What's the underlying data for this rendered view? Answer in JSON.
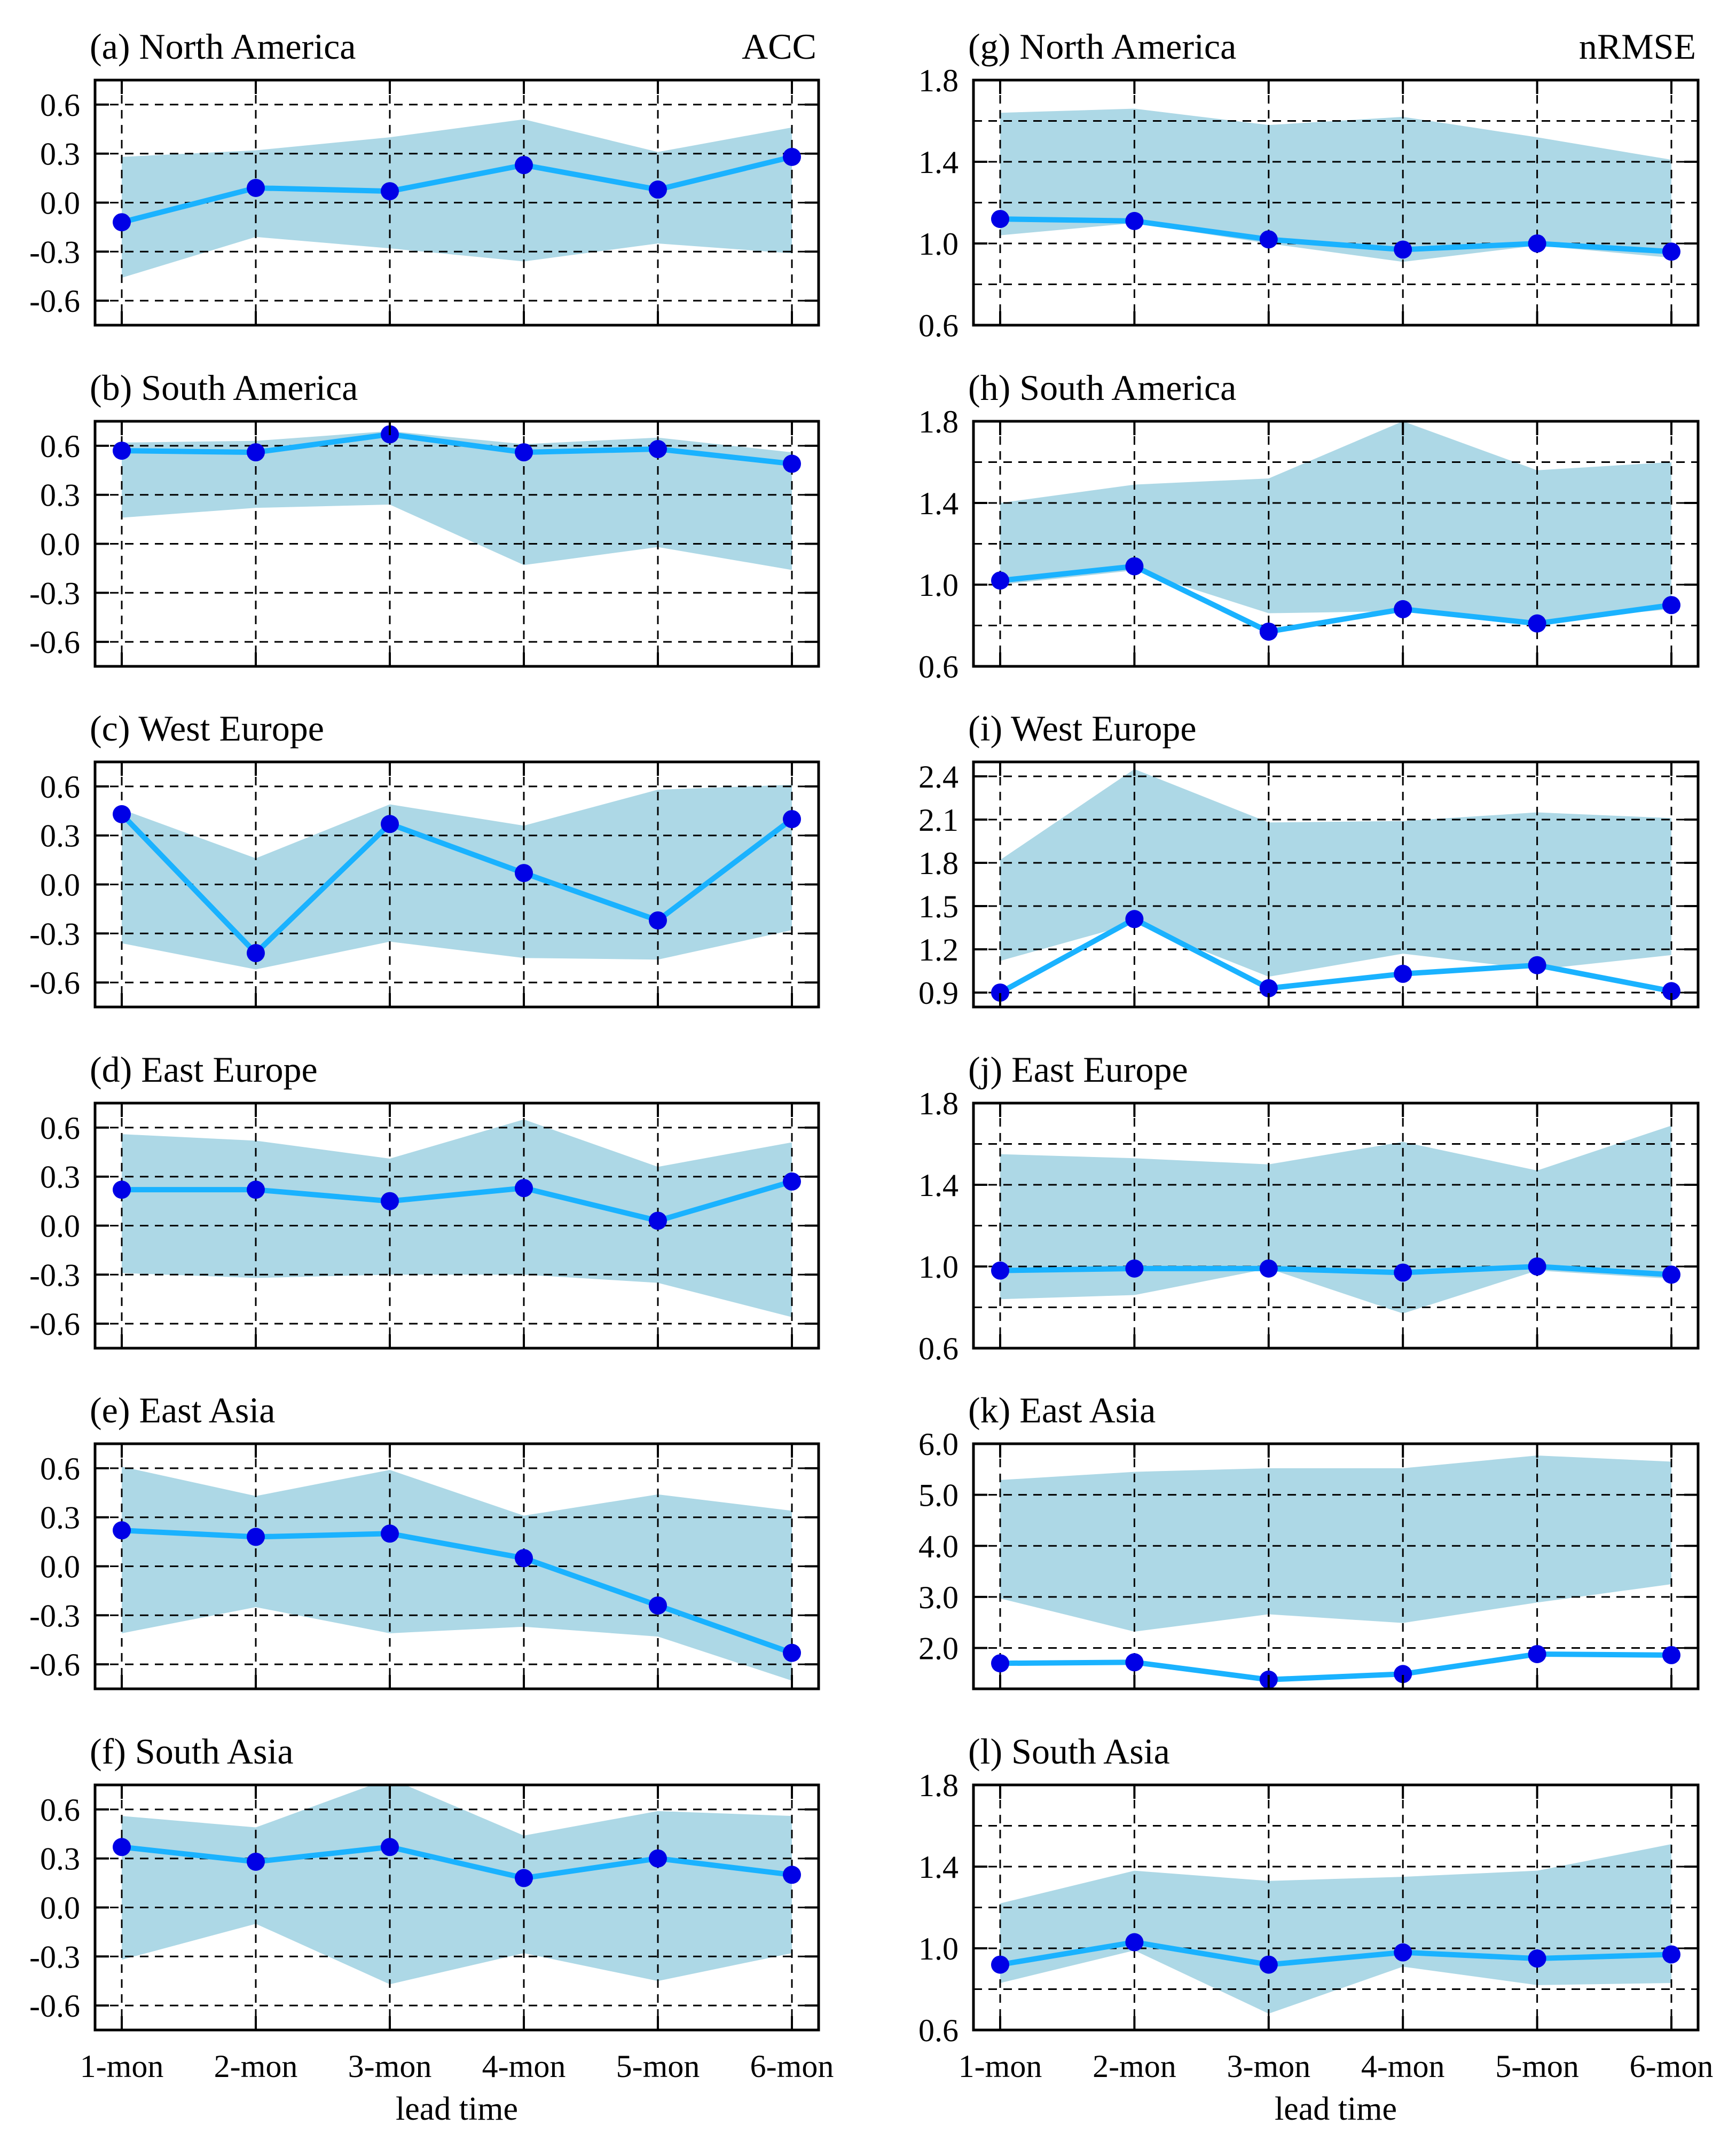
{
  "figure": {
    "metric_labels": [
      "ACC",
      "nRMSE"
    ],
    "x_axis_label": "lead time",
    "categories": [
      "1-mon",
      "2-mon",
      "3-mon",
      "4-mon",
      "5-mon",
      "6-mon"
    ],
    "colors": {
      "band": "#add8e6",
      "line": "#1ab2ff",
      "marker": "#0000e6",
      "grid": "#000000"
    }
  },
  "chart_data": [
    {
      "type": "line",
      "panel": "a",
      "title": "(a) North America",
      "metric": "ACC",
      "categories": [
        "1-mon",
        "2-mon",
        "3-mon",
        "4-mon",
        "5-mon",
        "6-mon"
      ],
      "ylim": [
        -0.75,
        0.75
      ],
      "yticks": [
        -0.6,
        -0.3,
        0.0,
        0.3,
        0.6
      ],
      "ytick_labels": [
        "-0.6",
        "-0.3",
        "0.0",
        "0.3",
        "0.6"
      ],
      "values": [
        -0.12,
        0.09,
        0.07,
        0.23,
        0.08,
        0.28
      ],
      "band_upper": [
        0.28,
        0.32,
        0.4,
        0.51,
        0.31,
        0.46
      ],
      "band_lower": [
        -0.46,
        -0.21,
        -0.28,
        -0.36,
        -0.25,
        -0.31
      ]
    },
    {
      "type": "line",
      "panel": "b",
      "title": "(b) South America",
      "metric": "ACC",
      "categories": [
        "1-mon",
        "2-mon",
        "3-mon",
        "4-mon",
        "5-mon",
        "6-mon"
      ],
      "ylim": [
        -0.75,
        0.75
      ],
      "yticks": [
        -0.6,
        -0.3,
        0.0,
        0.3,
        0.6
      ],
      "ytick_labels": [
        "-0.6",
        "-0.3",
        "0.0",
        "0.3",
        "0.6"
      ],
      "values": [
        0.57,
        0.56,
        0.67,
        0.56,
        0.58,
        0.49
      ],
      "band_upper": [
        0.62,
        0.63,
        0.69,
        0.61,
        0.65,
        0.56
      ],
      "band_lower": [
        0.16,
        0.22,
        0.24,
        -0.13,
        -0.02,
        -0.16
      ]
    },
    {
      "type": "line",
      "panel": "c",
      "title": "(c) West Europe",
      "metric": "ACC",
      "categories": [
        "1-mon",
        "2-mon",
        "3-mon",
        "4-mon",
        "5-mon",
        "6-mon"
      ],
      "ylim": [
        -0.75,
        0.75
      ],
      "yticks": [
        -0.6,
        -0.3,
        0.0,
        0.3,
        0.6
      ],
      "ytick_labels": [
        "-0.6",
        "-0.3",
        "0.0",
        "0.3",
        "0.6"
      ],
      "values": [
        0.43,
        -0.42,
        0.37,
        0.07,
        -0.22,
        0.4
      ],
      "band_upper": [
        0.46,
        0.16,
        0.49,
        0.36,
        0.58,
        0.61
      ],
      "band_lower": [
        -0.36,
        -0.52,
        -0.35,
        -0.45,
        -0.46,
        -0.28
      ]
    },
    {
      "type": "line",
      "panel": "d",
      "title": "(d) East Europe",
      "metric": "ACC",
      "categories": [
        "1-mon",
        "2-mon",
        "3-mon",
        "4-mon",
        "5-mon",
        "6-mon"
      ],
      "ylim": [
        -0.75,
        0.75
      ],
      "yticks": [
        -0.6,
        -0.3,
        0.0,
        0.3,
        0.6
      ],
      "ytick_labels": [
        "-0.6",
        "-0.3",
        "0.0",
        "0.3",
        "0.6"
      ],
      "values": [
        0.22,
        0.22,
        0.15,
        0.23,
        0.03,
        0.27
      ],
      "band_upper": [
        0.56,
        0.52,
        0.41,
        0.65,
        0.36,
        0.51
      ],
      "band_lower": [
        -0.29,
        -0.32,
        -0.3,
        -0.3,
        -0.35,
        -0.56
      ]
    },
    {
      "type": "line",
      "panel": "e",
      "title": "(e) East Asia",
      "metric": "ACC",
      "categories": [
        "1-mon",
        "2-mon",
        "3-mon",
        "4-mon",
        "5-mon",
        "6-mon"
      ],
      "ylim": [
        -0.75,
        0.75
      ],
      "yticks": [
        -0.6,
        -0.3,
        0.0,
        0.3,
        0.6
      ],
      "ytick_labels": [
        "-0.6",
        "-0.3",
        "0.0",
        "0.3",
        "0.6"
      ],
      "values": [
        0.22,
        0.18,
        0.2,
        0.05,
        -0.24,
        -0.53
      ],
      "band_upper": [
        0.61,
        0.43,
        0.59,
        0.31,
        0.44,
        0.34
      ],
      "band_lower": [
        -0.41,
        -0.25,
        -0.41,
        -0.37,
        -0.43,
        -0.7
      ]
    },
    {
      "type": "line",
      "panel": "f",
      "title": "(f) South Asia",
      "metric": "ACC",
      "categories": [
        "1-mon",
        "2-mon",
        "3-mon",
        "4-mon",
        "5-mon",
        "6-mon"
      ],
      "ylim": [
        -0.75,
        0.75
      ],
      "yticks": [
        -0.6,
        -0.3,
        0.0,
        0.3,
        0.6
      ],
      "ytick_labels": [
        "-0.6",
        "-0.3",
        "0.0",
        "0.3",
        "0.6"
      ],
      "values": [
        0.37,
        0.28,
        0.37,
        0.18,
        0.3,
        0.2
      ],
      "band_upper": [
        0.56,
        0.49,
        0.79,
        0.44,
        0.59,
        0.56
      ],
      "band_lower": [
        -0.32,
        -0.1,
        -0.47,
        -0.28,
        -0.45,
        -0.28
      ]
    },
    {
      "type": "line",
      "panel": "g",
      "title": "(g) North America",
      "metric": "nRMSE",
      "categories": [
        "1-mon",
        "2-mon",
        "3-mon",
        "4-mon",
        "5-mon",
        "6-mon"
      ],
      "ylim": [
        0.6,
        1.8
      ],
      "yticks": [
        0.6,
        1.0,
        1.4,
        1.8
      ],
      "ytick_labels": [
        "0.6",
        "1.0",
        "1.4",
        "1.8"
      ],
      "minor_grid": [
        0.8,
        1.2,
        1.6
      ],
      "values": [
        1.12,
        1.11,
        1.02,
        0.97,
        1.0,
        0.96
      ],
      "band_upper": [
        1.64,
        1.66,
        1.58,
        1.62,
        1.52,
        1.41
      ],
      "band_lower": [
        1.04,
        1.1,
        1.0,
        0.91,
        0.99,
        0.93
      ]
    },
    {
      "type": "line",
      "panel": "h",
      "title": "(h) South America",
      "metric": "nRMSE",
      "categories": [
        "1-mon",
        "2-mon",
        "3-mon",
        "4-mon",
        "5-mon",
        "6-mon"
      ],
      "ylim": [
        0.6,
        1.8
      ],
      "yticks": [
        0.6,
        1.0,
        1.4,
        1.8
      ],
      "ytick_labels": [
        "0.6",
        "1.0",
        "1.4",
        "1.8"
      ],
      "minor_grid": [
        0.8,
        1.2,
        1.6
      ],
      "values": [
        1.02,
        1.09,
        0.77,
        0.88,
        0.81,
        0.9
      ],
      "band_upper": [
        1.4,
        1.49,
        1.52,
        1.8,
        1.56,
        1.6
      ],
      "band_lower": [
        1.0,
        1.07,
        0.86,
        0.87,
        0.82,
        0.88
      ]
    },
    {
      "type": "line",
      "panel": "i",
      "title": "(i) West Europe",
      "metric": "nRMSE",
      "categories": [
        "1-mon",
        "2-mon",
        "3-mon",
        "4-mon",
        "5-mon",
        "6-mon"
      ],
      "ylim": [
        0.8,
        2.5
      ],
      "yticks": [
        0.9,
        1.2,
        1.5,
        1.8,
        2.1,
        2.4
      ],
      "ytick_labels": [
        "0.9",
        "1.2",
        "1.5",
        "1.8",
        "2.1",
        "2.4"
      ],
      "values": [
        0.9,
        1.41,
        0.93,
        1.03,
        1.09,
        0.91
      ],
      "band_upper": [
        1.82,
        2.45,
        2.08,
        2.09,
        2.15,
        2.11
      ],
      "band_lower": [
        1.12,
        1.38,
        1.01,
        1.17,
        1.06,
        1.16
      ]
    },
    {
      "type": "line",
      "panel": "j",
      "title": "(j) East Europe",
      "metric": "nRMSE",
      "categories": [
        "1-mon",
        "2-mon",
        "3-mon",
        "4-mon",
        "5-mon",
        "6-mon"
      ],
      "ylim": [
        0.6,
        1.8
      ],
      "yticks": [
        0.6,
        1.0,
        1.4,
        1.8
      ],
      "ytick_labels": [
        "0.6",
        "1.0",
        "1.4",
        "1.8"
      ],
      "minor_grid": [
        0.8,
        1.2,
        1.6
      ],
      "values": [
        0.98,
        0.99,
        0.99,
        0.97,
        1.0,
        0.96
      ],
      "band_upper": [
        1.55,
        1.53,
        1.5,
        1.61,
        1.47,
        1.69
      ],
      "band_lower": [
        0.84,
        0.86,
        0.99,
        0.77,
        0.98,
        0.94
      ]
    },
    {
      "type": "line",
      "panel": "k",
      "title": "(k) East Asia",
      "metric": "nRMSE",
      "categories": [
        "1-mon",
        "2-mon",
        "3-mon",
        "4-mon",
        "5-mon",
        "6-mon"
      ],
      "ylim": [
        1.2,
        6.0
      ],
      "yticks": [
        2.0,
        3.0,
        4.0,
        5.0,
        6.0
      ],
      "ytick_labels": [
        "2.0",
        "3.0",
        "4.0",
        "5.0",
        "6.0"
      ],
      "values": [
        1.7,
        1.72,
        1.38,
        1.49,
        1.88,
        1.86
      ],
      "band_upper": [
        5.29,
        5.45,
        5.52,
        5.52,
        5.77,
        5.65
      ],
      "band_lower": [
        2.97,
        2.32,
        2.66,
        2.49,
        2.89,
        3.25
      ]
    },
    {
      "type": "line",
      "panel": "l",
      "title": "(l) South Asia",
      "metric": "nRMSE",
      "categories": [
        "1-mon",
        "2-mon",
        "3-mon",
        "4-mon",
        "5-mon",
        "6-mon"
      ],
      "ylim": [
        0.6,
        1.8
      ],
      "yticks": [
        0.6,
        1.0,
        1.4,
        1.8
      ],
      "ytick_labels": [
        "0.6",
        "1.0",
        "1.4",
        "1.8"
      ],
      "minor_grid": [
        0.8,
        1.2,
        1.6
      ],
      "values": [
        0.92,
        1.03,
        0.92,
        0.98,
        0.95,
        0.97
      ],
      "band_upper": [
        1.22,
        1.38,
        1.33,
        1.35,
        1.38,
        1.51
      ],
      "band_lower": [
        0.83,
        0.99,
        0.68,
        0.91,
        0.82,
        0.83
      ]
    }
  ]
}
